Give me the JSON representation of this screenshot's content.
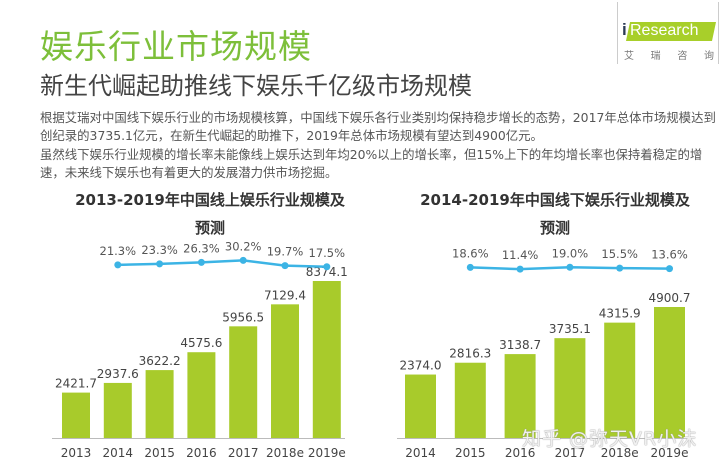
{
  "header": {
    "title": "娱乐行业市场规模",
    "subtitle": "新生代崛起助推线下娱乐千亿级市场规模"
  },
  "logo": {
    "brand_i": "i",
    "brand_text": "Research",
    "cn": [
      "艾",
      "瑞",
      "咨",
      "询"
    ]
  },
  "paragraphs": [
    "根据艾瑞对中国线下娱乐行业的市场规模核算，中国线下娱乐各行业类别均保持稳步增长的态势，2017年总体市场规模达到创纪录的3735.1亿元，在新生代崛起的助推下，2019年总体市场规模有望达到4900亿元。",
    "虽然线下娱乐行业规模的增长率未能像线上娱乐达到年均20%以上的增长率，但15%上下的年均增长率也保持着稳定的增速，未来线下娱乐也有着更大的发展潜力供市场挖掘。"
  ],
  "watermark": "知乎 @弥天VR小沫",
  "colors": {
    "bar": "#a8cb2b",
    "line": "#3cb4e5",
    "title_green": "#7dbf3a"
  },
  "chart_data": [
    {
      "type": "bar",
      "title_line1": "2013-2019年中国线上娱乐行业规模及",
      "title_line2": "预测",
      "categories": [
        "2013",
        "2014",
        "2015",
        "2016",
        "2017",
        "2018e",
        "2019e"
      ],
      "value_labels": [
        "2421.7",
        "2937.6",
        "3622.2",
        "4575.6",
        "5956.5",
        "7129.4",
        "8374.1"
      ],
      "values": [
        2421.7,
        2937.6,
        3622.2,
        4575.6,
        5956.5,
        7129.4,
        8374.1
      ],
      "growth": {
        "type": "line",
        "labels": [
          "21.3%",
          "23.3%",
          "26.3%",
          "30.2%",
          "19.7%",
          "17.5%"
        ],
        "values": [
          21.3,
          23.3,
          26.3,
          30.2,
          19.7,
          17.5
        ],
        "categories": [
          "2014",
          "2015",
          "2016",
          "2017",
          "2018e",
          "2019e"
        ]
      },
      "xlabel": "",
      "ylabel": "",
      "ylim": [
        0,
        8400
      ],
      "grid": false,
      "legend": "none"
    },
    {
      "type": "bar",
      "title_line1": "2014-2019年中国线下娱乐行业规模及",
      "title_line2": "预测",
      "categories": [
        "2014",
        "2015",
        "2016",
        "2017",
        "2018e",
        "2019e"
      ],
      "value_labels": [
        "2374.0",
        "2816.3",
        "3138.7",
        "3735.1",
        "4315.9",
        "4900.7"
      ],
      "values": [
        2374.0,
        2816.3,
        3138.7,
        3735.1,
        4315.9,
        4900.7
      ],
      "growth": {
        "type": "line",
        "labels": [
          "18.6%",
          "11.4%",
          "19.0%",
          "15.5%",
          "13.6%"
        ],
        "values": [
          18.6,
          11.4,
          19.0,
          15.5,
          13.6
        ],
        "categories": [
          "2015",
          "2016",
          "2017",
          "2018e",
          "2019e"
        ]
      },
      "xlabel": "",
      "ylabel": "",
      "ylim": [
        0,
        4900
      ],
      "grid": false,
      "legend": "none"
    }
  ]
}
